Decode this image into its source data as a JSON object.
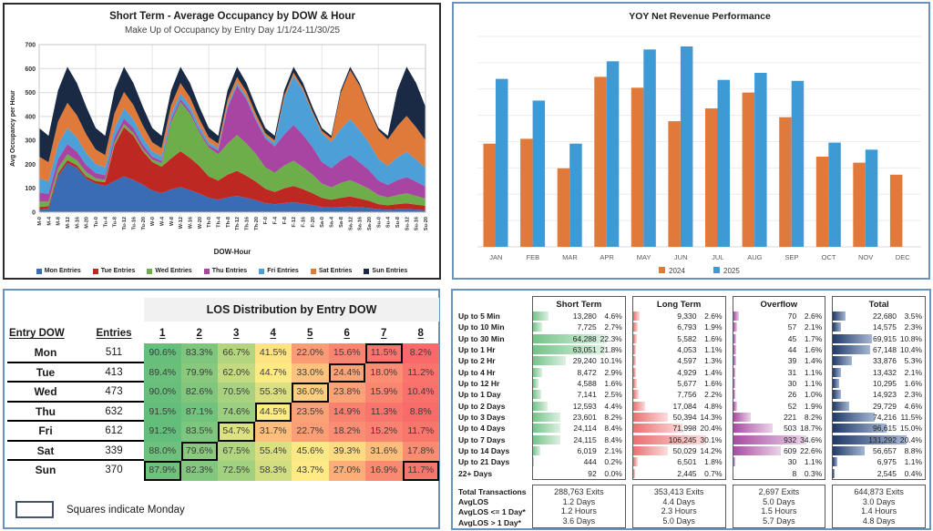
{
  "chart_data": [
    {
      "id": "occupancy_area",
      "type": "area",
      "stacked": true,
      "title": "Short Term - Average Occupancy by DOW & Hour",
      "subtitle": "Make Up of Occupancy by Entry Day 1/1/24-11/30/25",
      "xlabel": "DOW-Hour",
      "ylabel": "Avg Occupancy per Hour",
      "ylim": [
        0,
        700
      ],
      "ytick": 100,
      "grid": true,
      "legend_position": "bottom",
      "x": [
        "M-0",
        "M-4",
        "M-8",
        "M-12",
        "M-16",
        "M-20",
        "Tu-0",
        "Tu-4",
        "Tu-8",
        "Tu-12",
        "Tu-16",
        "Tu-20",
        "W-0",
        "W-4",
        "W-8",
        "W-12",
        "W-16",
        "W-20",
        "Th-0",
        "Th-4",
        "Th-8",
        "Th-12",
        "Th-16",
        "Th-20",
        "F-0",
        "F-4",
        "F-8",
        "F-12",
        "F-16",
        "F-20",
        "Sa-0",
        "Sa-4",
        "Sa-8",
        "Sa-12",
        "Sa-16",
        "Sa-20",
        "Su-0",
        "Su-4",
        "Su-8",
        "Su-12",
        "Su-16",
        "Su-20"
      ],
      "series": [
        {
          "name": "Mon Entries",
          "color": "#3A6BB5",
          "values": [
            10,
            15,
            150,
            205,
            185,
            140,
            120,
            110,
            130,
            150,
            135,
            115,
            90,
            80,
            95,
            105,
            92,
            78,
            60,
            52,
            62,
            68,
            60,
            50,
            38,
            33,
            38,
            42,
            36,
            30,
            22,
            19,
            22,
            24,
            21,
            18,
            12,
            10,
            12,
            13,
            11,
            9
          ]
        },
        {
          "name": "Tue Entries",
          "color": "#BE2823",
          "values": [
            12,
            10,
            12,
            13,
            11,
            9,
            10,
            15,
            150,
            205,
            185,
            140,
            120,
            110,
            130,
            150,
            135,
            115,
            90,
            80,
            95,
            105,
            92,
            78,
            60,
            52,
            62,
            68,
            60,
            50,
            38,
            33,
            38,
            42,
            36,
            30,
            22,
            19,
            22,
            24,
            21,
            18
          ]
        },
        {
          "name": "Wed Entries",
          "color": "#6EAE4A",
          "values": [
            22,
            19,
            22,
            24,
            21,
            18,
            12,
            10,
            12,
            13,
            11,
            9,
            10,
            15,
            150,
            205,
            185,
            140,
            120,
            110,
            130,
            150,
            135,
            115,
            90,
            80,
            95,
            105,
            92,
            78,
            60,
            52,
            62,
            68,
            60,
            50,
            38,
            33,
            38,
            42,
            36,
            30
          ]
        },
        {
          "name": "Thu Entries",
          "color": "#A844A1",
          "values": [
            38,
            33,
            38,
            42,
            36,
            30,
            22,
            19,
            22,
            24,
            21,
            18,
            12,
            10,
            12,
            13,
            11,
            9,
            10,
            15,
            150,
            205,
            185,
            140,
            120,
            110,
            130,
            150,
            135,
            115,
            90,
            80,
            95,
            105,
            92,
            78,
            60,
            52,
            62,
            68,
            60,
            50
          ]
        },
        {
          "name": "Fri Entries",
          "color": "#4D9FD8",
          "values": [
            60,
            52,
            62,
            68,
            60,
            50,
            38,
            33,
            38,
            42,
            36,
            30,
            22,
            19,
            22,
            24,
            21,
            18,
            12,
            10,
            12,
            13,
            11,
            9,
            10,
            15,
            150,
            205,
            185,
            140,
            120,
            110,
            130,
            150,
            135,
            115,
            90,
            80,
            95,
            105,
            92,
            78
          ]
        },
        {
          "name": "Sat Entries",
          "color": "#E07A3B",
          "values": [
            90,
            80,
            95,
            105,
            92,
            78,
            60,
            52,
            62,
            68,
            60,
            50,
            38,
            33,
            38,
            42,
            36,
            30,
            22,
            19,
            22,
            24,
            21,
            18,
            12,
            10,
            12,
            13,
            11,
            9,
            10,
            15,
            150,
            205,
            185,
            140,
            120,
            110,
            130,
            150,
            135,
            115
          ]
        },
        {
          "name": "Sun Entries",
          "color": "#1A2A44",
          "values": [
            120,
            110,
            130,
            150,
            135,
            115,
            90,
            80,
            95,
            105,
            92,
            78,
            60,
            52,
            62,
            68,
            60,
            50,
            38,
            33,
            38,
            42,
            36,
            30,
            22,
            19,
            22,
            24,
            21,
            18,
            12,
            10,
            12,
            13,
            11,
            9,
            10,
            15,
            150,
            205,
            185,
            140
          ]
        }
      ]
    },
    {
      "id": "yoy_bar",
      "type": "bar",
      "title": "YOY Net Revenue Performance",
      "categories": [
        "JAN",
        "FEB",
        "MAR",
        "APR",
        "MAY",
        "JUN",
        "JUL",
        "AUG",
        "SEP",
        "OCT",
        "NOV",
        "DEC"
      ],
      "value_scale": "relative-0-100 (y axis labels not shown in source)",
      "ylim": [
        0,
        105
      ],
      "grid": true,
      "legend_position": "bottom",
      "series": [
        {
          "name": "2024",
          "color": "#E0793A",
          "values": [
            51.5,
            53.9,
            39.2,
            84.8,
            79.4,
            62.7,
            69.1,
            77.0,
            64.7,
            45.0,
            42.0,
            36.0
          ]
        },
        {
          "name": "2025",
          "color": "#3E9AD5",
          "values": [
            83.8,
            73.0,
            51.5,
            92.6,
            98.5,
            100.0,
            83.3,
            86.8,
            82.8,
            52.0,
            48.5,
            null
          ]
        }
      ]
    },
    {
      "id": "los_distribution_table",
      "type": "table",
      "title": "LOS Distribution by Entry DOW",
      "columns": [
        "Entry DOW",
        "Entries",
        "1",
        "2",
        "3",
        "4",
        "5",
        "6",
        "7",
        "8"
      ],
      "rows": [
        {
          "day": "Mon",
          "entries": 511,
          "pct": [
            90.6,
            83.3,
            66.7,
            41.5,
            22.0,
            15.6,
            11.5,
            8.2
          ],
          "monday_box": [
            6
          ]
        },
        {
          "day": "Tue",
          "entries": 413,
          "pct": [
            89.4,
            79.9,
            62.0,
            44.7,
            33.0,
            24.4,
            18.0,
            11.2
          ],
          "monday_box": [
            5
          ]
        },
        {
          "day": "Wed",
          "entries": 473,
          "pct": [
            90.0,
            82.6,
            70.5,
            55.3,
            36.0,
            23.8,
            15.9,
            10.4
          ],
          "monday_box": [
            4
          ]
        },
        {
          "day": "Thu",
          "entries": 632,
          "pct": [
            91.5,
            87.1,
            74.6,
            44.5,
            23.5,
            14.9,
            11.3,
            8.8
          ],
          "monday_box": [
            3
          ]
        },
        {
          "day": "Fri",
          "entries": 612,
          "pct": [
            91.2,
            83.5,
            54.7,
            31.7,
            22.7,
            18.2,
            15.2,
            11.7
          ],
          "monday_box": [
            2
          ]
        },
        {
          "day": "Sat",
          "entries": 339,
          "pct": [
            88.0,
            79.6,
            67.5,
            55.4,
            45.6,
            39.3,
            31.6,
            17.8
          ],
          "monday_box": [
            1
          ]
        },
        {
          "day": "Sun",
          "entries": 370,
          "pct": [
            87.9,
            82.3,
            72.5,
            58.3,
            43.7,
            27.0,
            16.9,
            11.7
          ],
          "monday_box": [
            0,
            7
          ]
        }
      ],
      "legend": "Squares indicate Monday",
      "heat_scale": {
        "min": 8.2,
        "mid": 44,
        "max": 91.5,
        "min_color": "#F8696B",
        "mid_color": "#FFEB84",
        "max_color": "#63BE7B"
      }
    },
    {
      "id": "los_histograms",
      "type": "bar",
      "orientation": "horizontal",
      "row_labels": [
        "Up to 5 Min",
        "Up to 10 Min",
        "Up to 30 Min",
        "Up to 1 Hr",
        "Up to 2 Hr",
        "Up to 4 Hr",
        "Up to 12 Hr",
        "Up to 1 Day",
        "Up to 2 Days",
        "Up to 3 Days",
        "Up to 4 Days",
        "Up to 7 Days",
        "Up to 14 Days",
        "Up to 21 Days",
        "22+ Days"
      ],
      "summary_labels": [
        "Total Transactions",
        "AvgLOS",
        "AvgLOS <= 1 Day*",
        "AvgLOS > 1 Day*"
      ],
      "panels": [
        {
          "title": "Short Term",
          "bar_color": "#74C388",
          "bar_fade": "#DDF1E2",
          "counts": [
            "13,280",
            "7,725",
            "64,288",
            "63,051",
            "29,240",
            "8,472",
            "4,588",
            "7,141",
            "12,593",
            "23,601",
            "24,114",
            "24,115",
            "6,019",
            "444",
            "92"
          ],
          "pcts": [
            4.6,
            2.7,
            22.3,
            21.8,
            10.1,
            2.9,
            1.6,
            2.5,
            4.4,
            8.2,
            8.4,
            8.4,
            2.1,
            0.2,
            0.0
          ],
          "summary": [
            "288,763 Exits",
            "1.2 Days",
            "1.2 Hours",
            "3.6 Days"
          ]
        },
        {
          "title": "Long Term",
          "bar_color": "#EC6F70",
          "bar_fade": "#FADDDC",
          "counts": [
            "9,330",
            "6,793",
            "5,582",
            "4,053",
            "4,597",
            "4,929",
            "5,677",
            "7,756",
            "17,084",
            "50,394",
            "71,998",
            "106,245",
            "50,029",
            "6,501",
            "2,445"
          ],
          "pcts": [
            2.6,
            1.9,
            1.6,
            1.1,
            1.3,
            1.4,
            1.6,
            2.2,
            4.8,
            14.3,
            20.4,
            30.1,
            14.2,
            1.8,
            0.7
          ],
          "summary": [
            "353,413 Exits",
            "4.4 Days",
            "2.3 Hours",
            "5.0 Days"
          ]
        },
        {
          "title": "Overflow",
          "bar_color": "#A94BA3",
          "bar_fade": "#EBD4E9",
          "counts": [
            "70",
            "57",
            "45",
            "44",
            "39",
            "31",
            "30",
            "26",
            "52",
            "221",
            "503",
            "932",
            "609",
            "30",
            "8"
          ],
          "pcts": [
            2.6,
            2.1,
            1.7,
            1.6,
            1.4,
            1.1,
            1.1,
            1.0,
            1.9,
            8.2,
            18.7,
            34.6,
            22.6,
            1.1,
            0.3
          ],
          "summary": [
            "2,697 Exits",
            "5.0 Days",
            "1.5 Hours",
            "5.7 Days"
          ]
        },
        {
          "title": "Total",
          "bar_color": "#203A68",
          "bar_fade": "#A5B6D4",
          "counts": [
            "22,680",
            "14,575",
            "69,915",
            "67,148",
            "33,876",
            "13,432",
            "10,295",
            "14,923",
            "29,729",
            "74,216",
            "96,615",
            "131,292",
            "56,657",
            "6,975",
            "2,545"
          ],
          "pcts": [
            3.5,
            2.3,
            10.8,
            10.4,
            5.3,
            2.1,
            1.6,
            2.3,
            4.6,
            11.5,
            15.0,
            20.4,
            8.8,
            1.1,
            0.4
          ],
          "summary": [
            "644,873 Exits",
            "3.0 Days",
            "1.4 Hours",
            "4.8 Days"
          ]
        }
      ]
    }
  ]
}
